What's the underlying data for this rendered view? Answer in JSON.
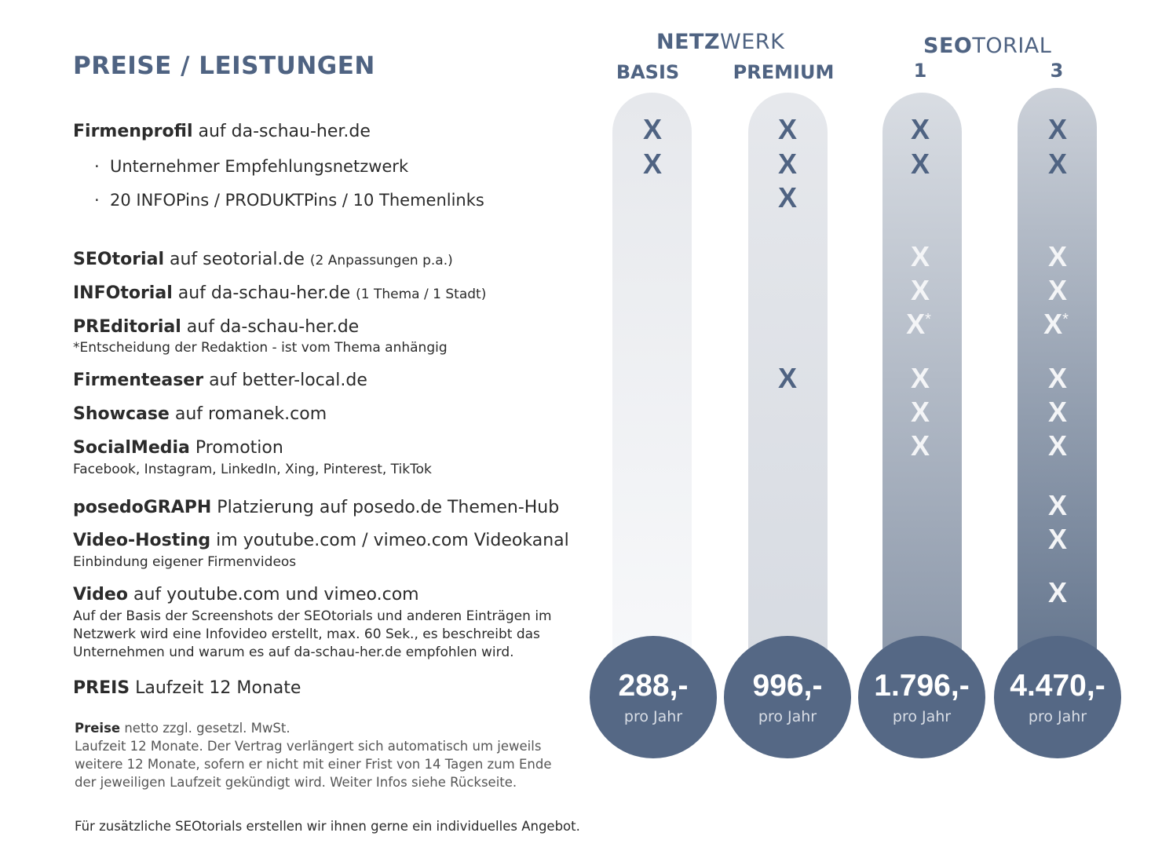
{
  "title": "PREISE / LEISTUNGEN",
  "groups": {
    "netzwerk": {
      "bold": "NETZ",
      "light": "WERK"
    },
    "seotorial": {
      "bold": "SEO",
      "light": "TORIAL"
    }
  },
  "columns": [
    {
      "label": "BASIS",
      "price": "288,-",
      "per": "pro Jahr"
    },
    {
      "label": "PREMIUM",
      "price": "996,-",
      "per": "pro Jahr"
    },
    {
      "label": "1",
      "price": "1.796,-",
      "per": "pro Jahr"
    },
    {
      "label": "3",
      "price": "4.470,-",
      "per": "pro Jahr"
    }
  ],
  "mark": "X",
  "asterisk": "*",
  "rows": {
    "firmenprofil": {
      "bold": "Firmenprofil",
      "rest": " auf da-schau-her.de"
    },
    "bullet1": "Unternehmer Empfehlungsnetzwerk",
    "bullet2": "20 INFOPins / PRODUKTPins / 10 Themenlinks",
    "bullet_dot": "·",
    "seotorial": {
      "bold": "SEOtorial",
      "rest": " auf seotorial.de ",
      "small": "(2 Anpassungen p.a.)"
    },
    "infotorial": {
      "bold": "INFOtorial",
      "rest": " auf da-schau-her.de ",
      "small": "(1 Thema / 1 Stadt)"
    },
    "preditorial": {
      "bold": "PREditorial",
      "rest": " auf da-schau-her.de",
      "sub": " *Entscheidung der Redaktion - ist vom Thema anhängig"
    },
    "firmenteaser": {
      "bold": "Firmenteaser",
      "rest": " auf better-local.de"
    },
    "showcase": {
      "bold": "Showcase",
      "rest": " auf romanek.com"
    },
    "socialmedia": {
      "bold": "SocialMedia",
      "rest": " Promotion",
      "sub": "Facebook, Instagram, LinkedIn, Xing, Pinterest, TikTok"
    },
    "posedograph": {
      "bold": "posedoGRAPH",
      "rest": " Platzierung auf posedo.de Themen-Hub"
    },
    "videohosting": {
      "bold": "Video-Hosting",
      "rest": " im youtube.com / vimeo.com Videokanal",
      "sub": "Einbindung eigener Firmenvideos"
    },
    "video": {
      "bold": "Video",
      "rest": " auf youtube.com und vimeo.com",
      "sub1": "Auf der Basis der Screenshots der SEOtorials und anderen Einträgen im",
      "sub2": "Netzwerk wird eine Infovideo erstellt, max. 60 Sek., es beschreibt das",
      "sub3": "Unternehmen und warum es auf da-schau-her.de empfohlen wird."
    },
    "preis": {
      "bold": "PREIS",
      "rest": " Laufzeit 12 Monate"
    }
  },
  "notes": {
    "bold": "Preise",
    "line1": " netto zzgl. gesetzl. MwSt.",
    "line2": "Laufzeit 12 Monate. Der Vertrag verlängert sich automatisch um jeweils",
    "line3": "weitere 12 Monate, sofern er nicht mit einer Frist von 14 Tagen zum Ende",
    "line4": "der jeweiligen Laufzeit gekündigt wird. Weiter Infos siehe Rückseite.",
    "footer": "Für zusätzliche SEOtorials erstellen wir ihnen gerne ein individuelles Angebot."
  }
}
